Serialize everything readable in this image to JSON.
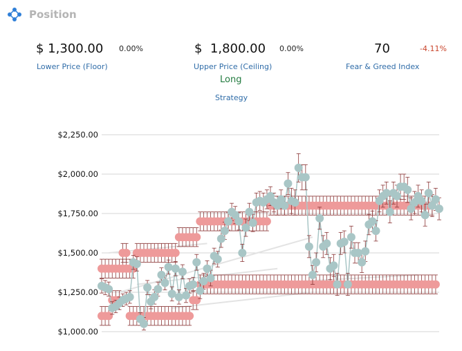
{
  "panel": {
    "title": "Position",
    "icon": "network-nodes-icon"
  },
  "stats": {
    "floor": {
      "value": "$ 1,300.00",
      "change": "0.00%",
      "label": "Lower Price (Floor)"
    },
    "ceiling": {
      "value": "$  1,800.00",
      "change": "0.00%",
      "label": "Upper Price (Ceiling)"
    },
    "fear_greed": {
      "value": "70",
      "change": "-4.11%",
      "label": "Fear & Greed Index"
    }
  },
  "strategy": {
    "value": "Long",
    "label": "Strategy"
  },
  "colors": {
    "price": "#a9c6c6",
    "range": "#ee9a9a",
    "error_bar": "#8a3535",
    "label_link": "#2f6ca8",
    "positive": "#217a3e",
    "negative": "#c9452c"
  },
  "chart_data": {
    "type": "line",
    "ylim": [
      1000,
      2250
    ],
    "yticks": [
      1000,
      1250,
      1500,
      1750,
      2000,
      2250
    ],
    "ytick_labels": [
      "$1,000.00",
      "$1,250.00",
      "$1,500.00",
      "$1,750.00",
      "$2,000.00",
      "$2,250.00"
    ],
    "grid": true,
    "series": [
      {
        "values": [
          1290,
          1280,
          1270,
          1150,
          1160,
          1180,
          1200,
          1210,
          1220,
          1440,
          1430,
          1080,
          1050,
          1280,
          1190,
          1220,
          1270,
          1360,
          1310,
          1410,
          1240,
          1400,
          1220,
          1380,
          1230,
          1290,
          1300,
          1440,
          1260,
          1320,
          1400,
          1340,
          1480,
          1460,
          1590,
          1640,
          1700,
          1760,
          1740,
          1700,
          1500,
          1660,
          1760,
          1690,
          1820,
          1830,
          1820,
          1840,
          1860,
          1820,
          1800,
          1840,
          1800,
          1940,
          1830,
          1820,
          2040,
          1980,
          1980,
          1540,
          1360,
          1440,
          1720,
          1540,
          1560,
          1400,
          1420,
          1300,
          1560,
          1570,
          1300,
          1600,
          1500,
          1500,
          1440,
          1510,
          1680,
          1700,
          1640,
          1830,
          1860,
          1880,
          1760,
          1880,
          1860,
          1920,
          1920,
          1900,
          1780,
          1820,
          1860,
          1830,
          1740,
          1880,
          1800,
          1840,
          1780
        ],
        "error": [
          45,
          45,
          45,
          40,
          40,
          40,
          40,
          40,
          40,
          45,
          45,
          40,
          40,
          45,
          45,
          45,
          45,
          45,
          45,
          45,
          45,
          45,
          45,
          45,
          45,
          45,
          45,
          50,
          50,
          50,
          50,
          50,
          50,
          50,
          55,
          55,
          55,
          55,
          55,
          55,
          55,
          55,
          55,
          55,
          60,
          60,
          60,
          60,
          60,
          60,
          60,
          60,
          60,
          70,
          80,
          80,
          90,
          80,
          80,
          70,
          60,
          60,
          70,
          70,
          70,
          70,
          70,
          70,
          70,
          70,
          70,
          70,
          65,
          65,
          65,
          65,
          65,
          65,
          65,
          70,
          70,
          70,
          70,
          70,
          70,
          80,
          80,
          80,
          70,
          70,
          70,
          70,
          70,
          70,
          70,
          70,
          70
        ]
      },
      {
        "values": [
          1100,
          1100,
          1100,
          1400,
          1400,
          1400,
          1500,
          1500,
          1100,
          1100,
          1100,
          1100,
          1100,
          1100,
          1100,
          1100,
          1100,
          1100,
          1100,
          1100,
          1100,
          1100,
          1100,
          1100,
          1100,
          1100,
          1200,
          1200,
          1300,
          1300,
          1300,
          1300,
          1300,
          1300,
          1300,
          1300,
          1300,
          1300,
          1300,
          1300,
          1300,
          1300,
          1300,
          1300,
          1300,
          1300,
          1300,
          1300,
          1300,
          1300,
          1300,
          1300,
          1300,
          1300,
          1300,
          1300,
          1300,
          1300,
          1300,
          1300,
          1300,
          1300,
          1300,
          1300,
          1300,
          1300,
          1300,
          1300,
          1300,
          1300,
          1300,
          1300,
          1300,
          1300,
          1300,
          1300,
          1300,
          1300,
          1300,
          1300,
          1300,
          1300,
          1300,
          1300,
          1300,
          1300,
          1300,
          1300,
          1300,
          1300,
          1300,
          1300,
          1300,
          1300,
          1300,
          1300
        ],
        "error": 60
      },
      {
        "values": [
          1400,
          1400,
          1400,
          1200,
          1200,
          1200,
          1400,
          1400,
          1400,
          1400,
          1500,
          1500,
          1500,
          1500,
          1500,
          1500,
          1500,
          1500,
          1500,
          1500,
          1500,
          1500,
          1600,
          1600,
          1600,
          1600,
          1600,
          1600,
          1700,
          1700,
          1700,
          1700,
          1700,
          1700,
          1700,
          1700,
          1700,
          1700,
          1700,
          1700,
          1700,
          1700,
          1700,
          1700,
          1700,
          1700,
          1700,
          1700,
          1800,
          1800,
          1800,
          1800,
          1800,
          1800,
          1800,
          1800,
          1800,
          1800,
          1800,
          1800,
          1800,
          1800,
          1800,
          1800,
          1800,
          1800,
          1800,
          1800,
          1800,
          1800,
          1800,
          1800,
          1800,
          1800,
          1800,
          1800,
          1800,
          1800,
          1800,
          1800,
          1800,
          1800,
          1800,
          1800,
          1800,
          1800,
          1800,
          1800,
          1800,
          1800,
          1800,
          1800,
          1800,
          1800,
          1800
        ],
        "error": 60
      }
    ]
  }
}
